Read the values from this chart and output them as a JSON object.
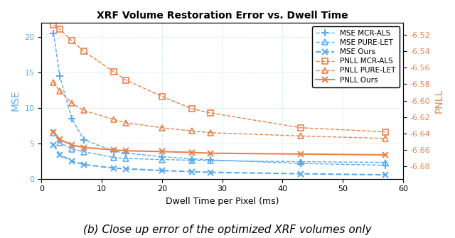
{
  "title": "XRF Volume Restoration Error vs. Dwell Time",
  "xlabel": "Dwell Time per Pixel (ms)",
  "ylabel_left": "MSE",
  "ylabel_right": "PNLL",
  "caption": "(b) Close up error of the optimized XRF volumes only",
  "xlim": [
    0,
    60
  ],
  "ylim_left": [
    0,
    22
  ],
  "ylim_right": [
    -6.695,
    -6.505
  ],
  "x_ticks": [
    0,
    10,
    20,
    30,
    40,
    50,
    60
  ],
  "y_ticks_left": [
    0,
    5,
    10,
    15,
    20
  ],
  "y_ticks_right": [
    -6.52,
    -6.54,
    -6.56,
    -6.58,
    -6.6,
    -6.62,
    -6.64,
    -6.66,
    -6.68
  ],
  "blue_color": "#5aabf0",
  "orange_color": "#e8834d",
  "mse_mcr_x": [
    2,
    3,
    5,
    7,
    12,
    14,
    20,
    25,
    28,
    43,
    57
  ],
  "mse_mcr_y": [
    20.5,
    14.5,
    8.5,
    5.5,
    3.9,
    3.6,
    3.1,
    2.8,
    2.65,
    2.15,
    1.9
  ],
  "mse_purelet_x": [
    2,
    3,
    5,
    7,
    12,
    14,
    20,
    25,
    28,
    43,
    57
  ],
  "mse_purelet_y": [
    6.5,
    5.1,
    4.2,
    3.8,
    3.0,
    2.85,
    2.7,
    2.6,
    2.55,
    2.4,
    2.3
  ],
  "mse_ours_x": [
    2,
    3,
    5,
    7,
    12,
    14,
    20,
    25,
    28,
    43,
    57
  ],
  "mse_ours_y": [
    4.8,
    3.4,
    2.5,
    2.0,
    1.5,
    1.4,
    1.15,
    1.0,
    0.9,
    0.7,
    0.55
  ],
  "pnll_mcr_x": [
    2,
    3,
    5,
    7,
    12,
    14,
    20,
    25,
    28,
    43,
    57
  ],
  "pnll_mcr_y": [
    -6.508,
    -6.513,
    -6.527,
    -6.54,
    -6.565,
    -6.575,
    -6.595,
    -6.61,
    -6.615,
    -6.633,
    -6.638
  ],
  "pnll_purelet_x": [
    2,
    3,
    5,
    7,
    12,
    14,
    20,
    25,
    28,
    43,
    57
  ],
  "pnll_purelet_y": [
    -6.578,
    -6.588,
    -6.603,
    -6.612,
    -6.623,
    -6.627,
    -6.633,
    -6.637,
    -6.639,
    -6.643,
    -6.646
  ],
  "pnll_ours_x": [
    2,
    3,
    5,
    7,
    12,
    14,
    20,
    25,
    28,
    43,
    57
  ],
  "pnll_ours_y": [
    -6.638,
    -6.647,
    -6.654,
    -6.657,
    -6.66,
    -6.661,
    -6.662,
    -6.663,
    -6.664,
    -6.665,
    -6.666
  ]
}
